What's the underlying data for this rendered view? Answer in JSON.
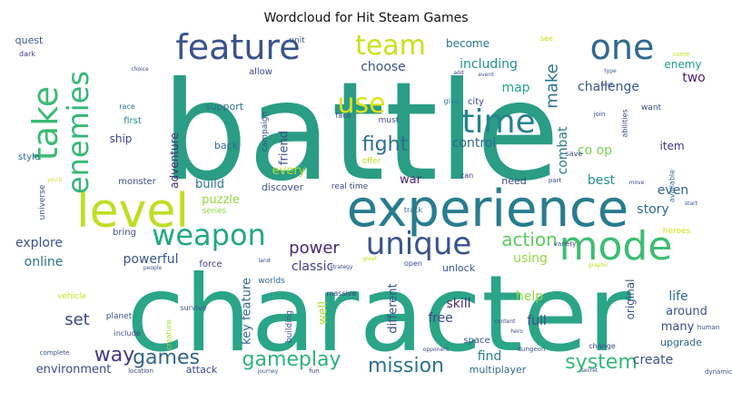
{
  "chart_data": {
    "type": "wordcloud",
    "title": "Wordcloud for Hit Steam Games",
    "colormap": "viridis",
    "background": "#ffffff",
    "words": [
      {
        "text": "battle",
        "weight": 1.0,
        "color": "#2a9d84"
      },
      {
        "text": "character",
        "weight": 0.93,
        "color": "#2aa587"
      },
      {
        "text": "experience",
        "weight": 0.5,
        "color": "#287d8e"
      },
      {
        "text": "level",
        "weight": 0.46,
        "color": "#bddf26"
      },
      {
        "text": "mode",
        "weight": 0.38,
        "color": "#3ebc73"
      },
      {
        "text": "feature",
        "weight": 0.37,
        "color": "#3b528b"
      },
      {
        "text": "one",
        "weight": 0.36,
        "color": "#31688e"
      },
      {
        "text": "take",
        "weight": 0.34,
        "color": "#3cbb75"
      },
      {
        "text": "unique",
        "weight": 0.31,
        "color": "#3a548c"
      },
      {
        "text": "weapon",
        "weight": 0.29,
        "color": "#22a884"
      },
      {
        "text": "enemies",
        "weight": 0.28,
        "color": "#35b779"
      },
      {
        "text": "time",
        "weight": 0.29,
        "color": "#26828e"
      },
      {
        "text": "team",
        "weight": 0.26,
        "color": "#cae11f"
      },
      {
        "text": "use",
        "weight": 0.25,
        "color": "#dde318"
      },
      {
        "text": "fight",
        "weight": 0.18,
        "color": "#2e6f8e"
      },
      {
        "text": "gameplay",
        "weight": 0.19,
        "color": "#2db27d"
      },
      {
        "text": "mission",
        "weight": 0.18,
        "color": "#2c728e"
      },
      {
        "text": "system",
        "weight": 0.18,
        "color": "#35b779"
      },
      {
        "text": "games",
        "weight": 0.18,
        "color": "#33638d"
      },
      {
        "text": "way",
        "weight": 0.17,
        "color": "#443983"
      },
      {
        "text": "make",
        "weight": 0.16,
        "color": "#2c738e"
      },
      {
        "text": "action",
        "weight": 0.16,
        "color": "#5ec962"
      },
      {
        "text": "power",
        "weight": 0.15,
        "color": "#482878"
      },
      {
        "text": "set",
        "weight": 0.14,
        "color": "#3e4989"
      },
      {
        "text": "including",
        "weight": 0.11,
        "color": "#21918c"
      },
      {
        "text": "challenge",
        "weight": 0.11,
        "color": "#3a548c"
      },
      {
        "text": "choose",
        "weight": 0.1,
        "color": "#3b528b"
      },
      {
        "text": "control",
        "weight": 0.1,
        "color": "#31688e"
      },
      {
        "text": "combat",
        "weight": 0.1,
        "color": "#2a788e"
      },
      {
        "text": "map",
        "weight": 0.1,
        "color": "#21a685"
      },
      {
        "text": "enemy",
        "weight": 0.08,
        "color": "#1f9e89"
      },
      {
        "text": "two",
        "weight": 0.09,
        "color": "#481f70"
      },
      {
        "text": "become",
        "weight": 0.08,
        "color": "#2a788e"
      },
      {
        "text": "quest",
        "weight": 0.06,
        "color": "#38588c"
      },
      {
        "text": "dark",
        "weight": 0.04,
        "color": "#433e85"
      },
      {
        "text": "co op",
        "weight": 0.1,
        "color": "#7ad151"
      },
      {
        "text": "item",
        "weight": 0.08,
        "color": "#463480"
      },
      {
        "text": "best",
        "weight": 0.09,
        "color": "#21918c"
      },
      {
        "text": "even",
        "weight": 0.09,
        "color": "#34608d"
      },
      {
        "text": "story",
        "weight": 0.09,
        "color": "#306a8e"
      },
      {
        "text": "build",
        "weight": 0.09,
        "color": "#2c728e"
      },
      {
        "text": "puzzle",
        "weight": 0.09,
        "color": "#95d840"
      },
      {
        "text": "explore",
        "weight": 0.09,
        "color": "#3b528b"
      },
      {
        "text": "online",
        "weight": 0.09,
        "color": "#2c728e"
      },
      {
        "text": "powerful",
        "weight": 0.09,
        "color": "#3b528b"
      },
      {
        "text": "classic",
        "weight": 0.09,
        "color": "#414487"
      },
      {
        "text": "skill",
        "weight": 0.09,
        "color": "#472d7b"
      },
      {
        "text": "free",
        "weight": 0.09,
        "color": "#3e4989"
      },
      {
        "text": "full",
        "weight": 0.09,
        "color": "#3e4a89"
      },
      {
        "text": "help",
        "weight": 0.09,
        "color": "#8fd744"
      },
      {
        "text": "life",
        "weight": 0.09,
        "color": "#31688e"
      },
      {
        "text": "around",
        "weight": 0.08,
        "color": "#3b528b"
      },
      {
        "text": "many",
        "weight": 0.08,
        "color": "#3e4989"
      },
      {
        "text": "create",
        "weight": 0.09,
        "color": "#3b528b"
      },
      {
        "text": "find",
        "weight": 0.09,
        "color": "#26828e"
      },
      {
        "text": "environment",
        "weight": 0.09,
        "color": "#3e4989"
      },
      {
        "text": "upgrade",
        "weight": 0.07,
        "color": "#31688e"
      },
      {
        "text": "using",
        "weight": 0.09,
        "color": "#95d840"
      },
      {
        "text": "war",
        "weight": 0.08,
        "color": "#482878"
      },
      {
        "text": "friend",
        "weight": 0.08,
        "color": "#3b528b"
      },
      {
        "text": "adventure",
        "weight": 0.07,
        "color": "#482878"
      },
      {
        "text": "every",
        "weight": 0.08,
        "color": "#b5de2b"
      },
      {
        "text": "ship",
        "weight": 0.07,
        "color": "#3e4989"
      },
      {
        "text": "support",
        "weight": 0.07,
        "color": "#2c728e"
      },
      {
        "text": "first",
        "weight": 0.06,
        "color": "#26828e"
      },
      {
        "text": "back",
        "weight": 0.06,
        "color": "#31688e"
      },
      {
        "text": "style",
        "weight": 0.05,
        "color": "#31688e"
      },
      {
        "text": "monster",
        "weight": 0.06,
        "color": "#3e4a89"
      },
      {
        "text": "discover",
        "weight": 0.07,
        "color": "#3b528b"
      },
      {
        "text": "real time",
        "weight": 0.06,
        "color": "#3e4989"
      },
      {
        "text": "need",
        "weight": 0.06,
        "color": "#3e4989"
      },
      {
        "text": "key feature",
        "weight": 0.08,
        "color": "#31688e"
      },
      {
        "text": "different",
        "weight": 0.08,
        "color": "#3b528b"
      },
      {
        "text": "well",
        "weight": 0.08,
        "color": "#aadc32"
      },
      {
        "text": "attack",
        "weight": 0.07,
        "color": "#3e4989"
      },
      {
        "text": "multiplayer",
        "weight": 0.06,
        "color": "#31688e"
      },
      {
        "text": "unlock",
        "weight": 0.06,
        "color": "#3b528b"
      },
      {
        "text": "original",
        "weight": 0.07,
        "color": "#3b528b"
      },
      {
        "text": "force",
        "weight": 0.06,
        "color": "#433e85"
      },
      {
        "text": "bring",
        "weight": 0.05,
        "color": "#3e4989"
      },
      {
        "text": "series",
        "weight": 0.05,
        "color": "#8fd744"
      },
      {
        "text": "worlds",
        "weight": 0.05,
        "color": "#31688e"
      },
      {
        "text": "heroes",
        "weight": 0.05,
        "color": "#d2e21b"
      },
      {
        "text": "campaign",
        "weight": 0.05,
        "color": "#3b528b"
      },
      {
        "text": "city",
        "weight": 0.06,
        "color": "#3e4989"
      },
      {
        "text": "unit",
        "weight": 0.05,
        "color": "#3b528b"
      },
      {
        "text": "allow",
        "weight": 0.06,
        "color": "#3e4989"
      },
      {
        "text": "must",
        "weight": 0.05,
        "color": "#3e4989"
      },
      {
        "text": "race",
        "weight": 0.04,
        "color": "#2c728e"
      },
      {
        "text": "face",
        "weight": 0.04,
        "color": "#3e4989"
      },
      {
        "text": "see",
        "weight": 0.03,
        "color": "#c8e020"
      },
      {
        "text": "give",
        "weight": 0.04,
        "color": "#26828e"
      },
      {
        "text": "want",
        "weight": 0.04,
        "color": "#3b528b"
      },
      {
        "text": "abilities",
        "weight": 0.04,
        "color": "#3e4989"
      },
      {
        "text": "available",
        "weight": 0.05,
        "color": "#2c728e"
      },
      {
        "text": "universe",
        "weight": 0.05,
        "color": "#3b528b"
      },
      {
        "text": "offer",
        "weight": 0.05,
        "color": "#c2df23"
      },
      {
        "text": "track",
        "weight": 0.04,
        "color": "#31688e"
      },
      {
        "text": "vehicle",
        "weight": 0.05,
        "color": "#c8e020"
      },
      {
        "text": "planet",
        "weight": 0.05,
        "color": "#3b528b"
      },
      {
        "text": "include",
        "weight": 0.04,
        "color": "#3e4989"
      },
      {
        "text": "survive",
        "weight": 0.04,
        "color": "#3b528b"
      },
      {
        "text": "massive",
        "weight": 0.04,
        "color": "#3e4989"
      },
      {
        "text": "space",
        "weight": 0.05,
        "color": "#3b528b"
      },
      {
        "text": "creature",
        "weight": 0.04,
        "color": "#a5db36"
      },
      {
        "text": "building",
        "weight": 0.05,
        "color": "#3b528b"
      },
      {
        "text": "change",
        "weight": 0.04,
        "color": "#3e4989"
      },
      {
        "text": "save",
        "weight": 0.04,
        "color": "#3e4989"
      },
      {
        "text": "complete",
        "weight": 0.03,
        "color": "#3b528b"
      },
      {
        "text": "location",
        "weight": 0.03,
        "color": "#3e4989"
      },
      {
        "text": "journey",
        "weight": 0.03,
        "color": "#3b528b"
      },
      {
        "text": "fun",
        "weight": 0.03,
        "color": "#3e4989"
      },
      {
        "text": "secret",
        "weight": 0.03,
        "color": "#3e4989"
      },
      {
        "text": "dungeon",
        "weight": 0.03,
        "color": "#3b528b"
      },
      {
        "text": "opponent",
        "weight": 0.03,
        "color": "#3e4989"
      },
      {
        "text": "human",
        "weight": 0.03,
        "color": "#3b528b"
      },
      {
        "text": "variety",
        "weight": 0.03,
        "color": "#3e4989"
      },
      {
        "text": "open",
        "weight": 0.04,
        "color": "#3b528b"
      },
      {
        "text": "great",
        "weight": 0.03,
        "color": "#c8e020"
      },
      {
        "text": "strategy",
        "weight": 0.03,
        "color": "#3e4989"
      },
      {
        "text": "people",
        "weight": 0.03,
        "color": "#3b528b"
      },
      {
        "text": "you'll",
        "weight": 0.03,
        "color": "#c8e020"
      },
      {
        "text": "choice",
        "weight": 0.03,
        "color": "#3e4989"
      },
      {
        "text": "come",
        "weight": 0.03,
        "color": "#c8e020"
      },
      {
        "text": "join",
        "weight": 0.03,
        "color": "#3b528b"
      },
      {
        "text": "hero",
        "weight": 0.03,
        "color": "#3e4989"
      },
      {
        "text": "dynamic",
        "weight": 0.03,
        "color": "#3b528b"
      },
      {
        "text": "can",
        "weight": 0.03,
        "color": "#3e4989"
      },
      {
        "text": "part",
        "weight": 0.03,
        "color": "#3b528b"
      },
      {
        "text": "move",
        "weight": 0.03,
        "color": "#3e4989"
      },
      {
        "text": "start",
        "weight": 0.03,
        "color": "#3b528b"
      },
      {
        "text": "next",
        "weight": 0.03,
        "color": "#3e4989"
      },
      {
        "text": "event",
        "weight": 0.03,
        "color": "#3b528b"
      },
      {
        "text": "add",
        "weight": 0.03,
        "color": "#3e4989"
      },
      {
        "text": "graphic",
        "weight": 0.03,
        "color": "#c8e020"
      },
      {
        "text": "land",
        "weight": 0.03,
        "color": "#3b528b"
      },
      {
        "text": "content",
        "weight": 0.03,
        "color": "#3e4989"
      },
      {
        "text": "type",
        "weight": 0.03,
        "color": "#3b528b"
      }
    ]
  }
}
